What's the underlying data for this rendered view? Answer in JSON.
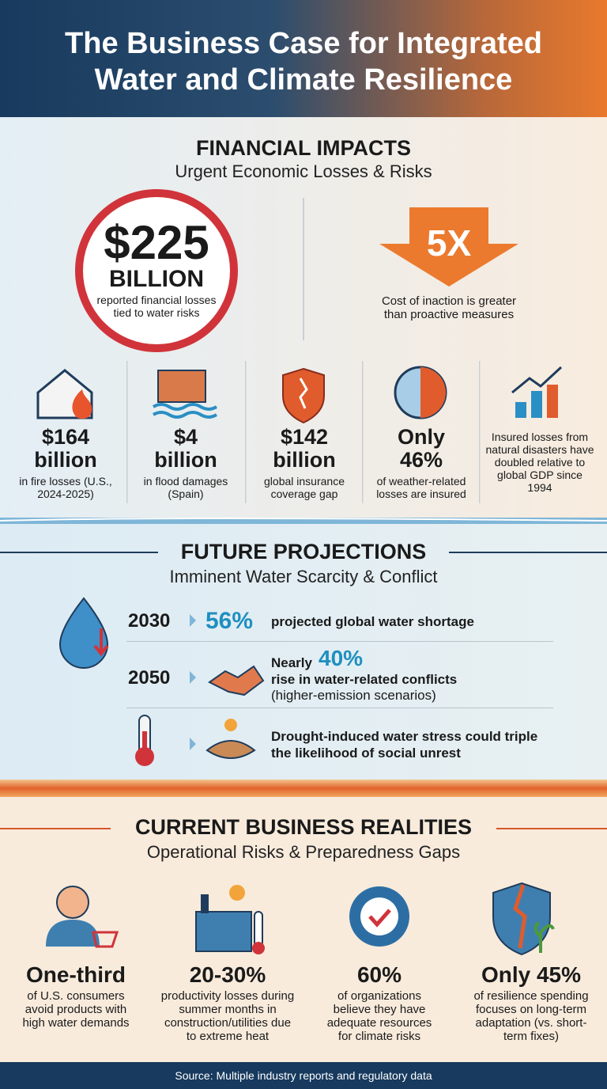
{
  "header": {
    "title_lines": [
      "The Business Case for Integrated",
      "Water and Climate Resilience"
    ]
  },
  "financial": {
    "heading": "FINANCIAL IMPACTS",
    "subheading": "Urgent Economic Losses & Risks",
    "headline": {
      "amount": "$225",
      "unit": "BILLION",
      "caption": "reported financial losses tied to water risks"
    },
    "multiplier": {
      "value": "5X",
      "caption": "Cost of inaction is greater than proactive measures"
    },
    "stats": [
      {
        "value": "$164 billion",
        "caption": "in fire losses (U.S., 2024-2025)"
      },
      {
        "value": "$4 billion",
        "caption": "in flood damages (Spain)"
      },
      {
        "value": "$142 billion",
        "caption": "global insurance coverage gap"
      },
      {
        "value": "Only 46%",
        "caption": "of weather-related losses are insured"
      },
      {
        "caption": "Insured losses from natural disasters have doubled relative to global GDP since 1994"
      }
    ]
  },
  "future": {
    "heading": "FUTURE PROJECTIONS",
    "subheading": "Imminent Water Scarcity & Conflict",
    "rows": [
      {
        "year": "2030",
        "value": "56%",
        "text": "projected global water shortage"
      },
      {
        "year": "2050",
        "prefix": "Nearly",
        "value": "40%",
        "text": "rise in water-related conflicts",
        "note": "(higher-emission scenarios)"
      },
      {
        "text": "Drought-induced water stress could triple the likelihood of social unrest"
      }
    ]
  },
  "current": {
    "heading": "CURRENT BUSINESS REALITIES",
    "subheading": "Operational Risks & Preparedness Gaps",
    "items": [
      {
        "value": "One-third",
        "caption": "of U.S. consumers avoid products with high water demands"
      },
      {
        "value": "20-30%",
        "caption": "productivity losses during summer months in construction/utilities due to extreme heat"
      },
      {
        "value": "60%",
        "caption": "of organizations believe they have adequate resources for climate risks"
      },
      {
        "value": "Only 45%",
        "caption": "of resilience spending focuses on long-term adaptation (vs. short-term fixes)"
      }
    ]
  },
  "footer": {
    "source": "Source: Multiple industry reports and regulatory data"
  }
}
